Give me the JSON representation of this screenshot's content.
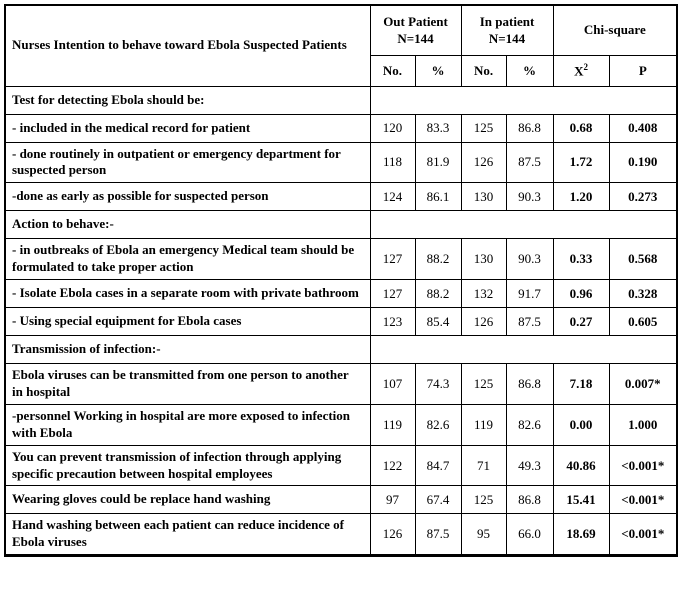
{
  "table": {
    "header": {
      "title": "Nurses Intention to behave toward Ebola Suspected Patients",
      "out_patient": {
        "label": "Out Patient",
        "n": "N=144"
      },
      "in_patient": {
        "label": "In patient",
        "n": "N=144"
      },
      "chi_square": {
        "label": "Chi-square",
        "x": "X",
        "x_sup": "2",
        "p": "P"
      },
      "sub": {
        "out_no": "No.",
        "out_pct": "%",
        "in_no": "No.",
        "in_pct": "%"
      }
    },
    "rows": [
      {
        "type": "section",
        "label": "Test for detecting Ebola should be:"
      },
      {
        "type": "data",
        "label": "- included in the medical record for patient",
        "out_no": "120",
        "out_pct": "83.3",
        "in_no": "125",
        "in_pct": "86.8",
        "x2": "0.68",
        "p": "0.408"
      },
      {
        "type": "data",
        "label": "- done routinely in outpatient or emergency department for suspected person",
        "out_no": "118",
        "out_pct": "81.9",
        "in_no": "126",
        "in_pct": "87.5",
        "x2": "1.72",
        "p": "0.190"
      },
      {
        "type": "data",
        "label": "-done as early as possible for suspected person",
        "out_no": "124",
        "out_pct": "86.1",
        "in_no": "130",
        "in_pct": "90.3",
        "x2": "1.20",
        "p": "0.273"
      },
      {
        "type": "section",
        "label": "Action to behave:-"
      },
      {
        "type": "data",
        "label": "- in outbreaks of Ebola an emergency Medical team should be formulated to take proper action",
        "out_no": "127",
        "out_pct": "88.2",
        "in_no": "130",
        "in_pct": "90.3",
        "x2": "0.33",
        "p": "0.568"
      },
      {
        "type": "data",
        "label": "- Isolate Ebola cases in a separate room with private bathroom",
        "out_no": "127",
        "out_pct": "88.2",
        "in_no": "132",
        "in_pct": "91.7",
        "x2": "0.96",
        "p": "0.328"
      },
      {
        "type": "data",
        "label": "- Using special equipment for Ebola cases",
        "out_no": "123",
        "out_pct": "85.4",
        "in_no": "126",
        "in_pct": "87.5",
        "x2": "0.27",
        "p": "0.605"
      },
      {
        "type": "section",
        "label": "Transmission of infection:-"
      },
      {
        "type": "data",
        "label": "Ebola viruses can be transmitted from one person to another in hospital",
        "out_no": "107",
        "out_pct": "74.3",
        "in_no": "125",
        "in_pct": "86.8",
        "x2": "7.18",
        "p": "0.007*"
      },
      {
        "type": "data",
        "label": "-personnel Working in hospital are more exposed to infection with Ebola",
        "out_no": "119",
        "out_pct": "82.6",
        "in_no": "119",
        "in_pct": "82.6",
        "x2": "0.00",
        "p": "1.000"
      },
      {
        "type": "data",
        "label": "You can prevent transmission of infection through applying specific precaution between hospital employees",
        "out_no": "122",
        "out_pct": "84.7",
        "in_no": "71",
        "in_pct": "49.3",
        "x2": "40.86",
        "p": "<0.001*"
      },
      {
        "type": "data",
        "label": "Wearing gloves could be replace hand washing",
        "out_no": "97",
        "out_pct": "67.4",
        "in_no": "125",
        "in_pct": "86.8",
        "x2": "15.41",
        "p": "<0.001*"
      },
      {
        "type": "data",
        "label": "Hand washing between each patient can reduce incidence of Ebola viruses",
        "out_no": "126",
        "out_pct": "87.5",
        "in_no": "95",
        "in_pct": "66.0",
        "x2": "18.69",
        "p": "<0.001*"
      }
    ]
  }
}
